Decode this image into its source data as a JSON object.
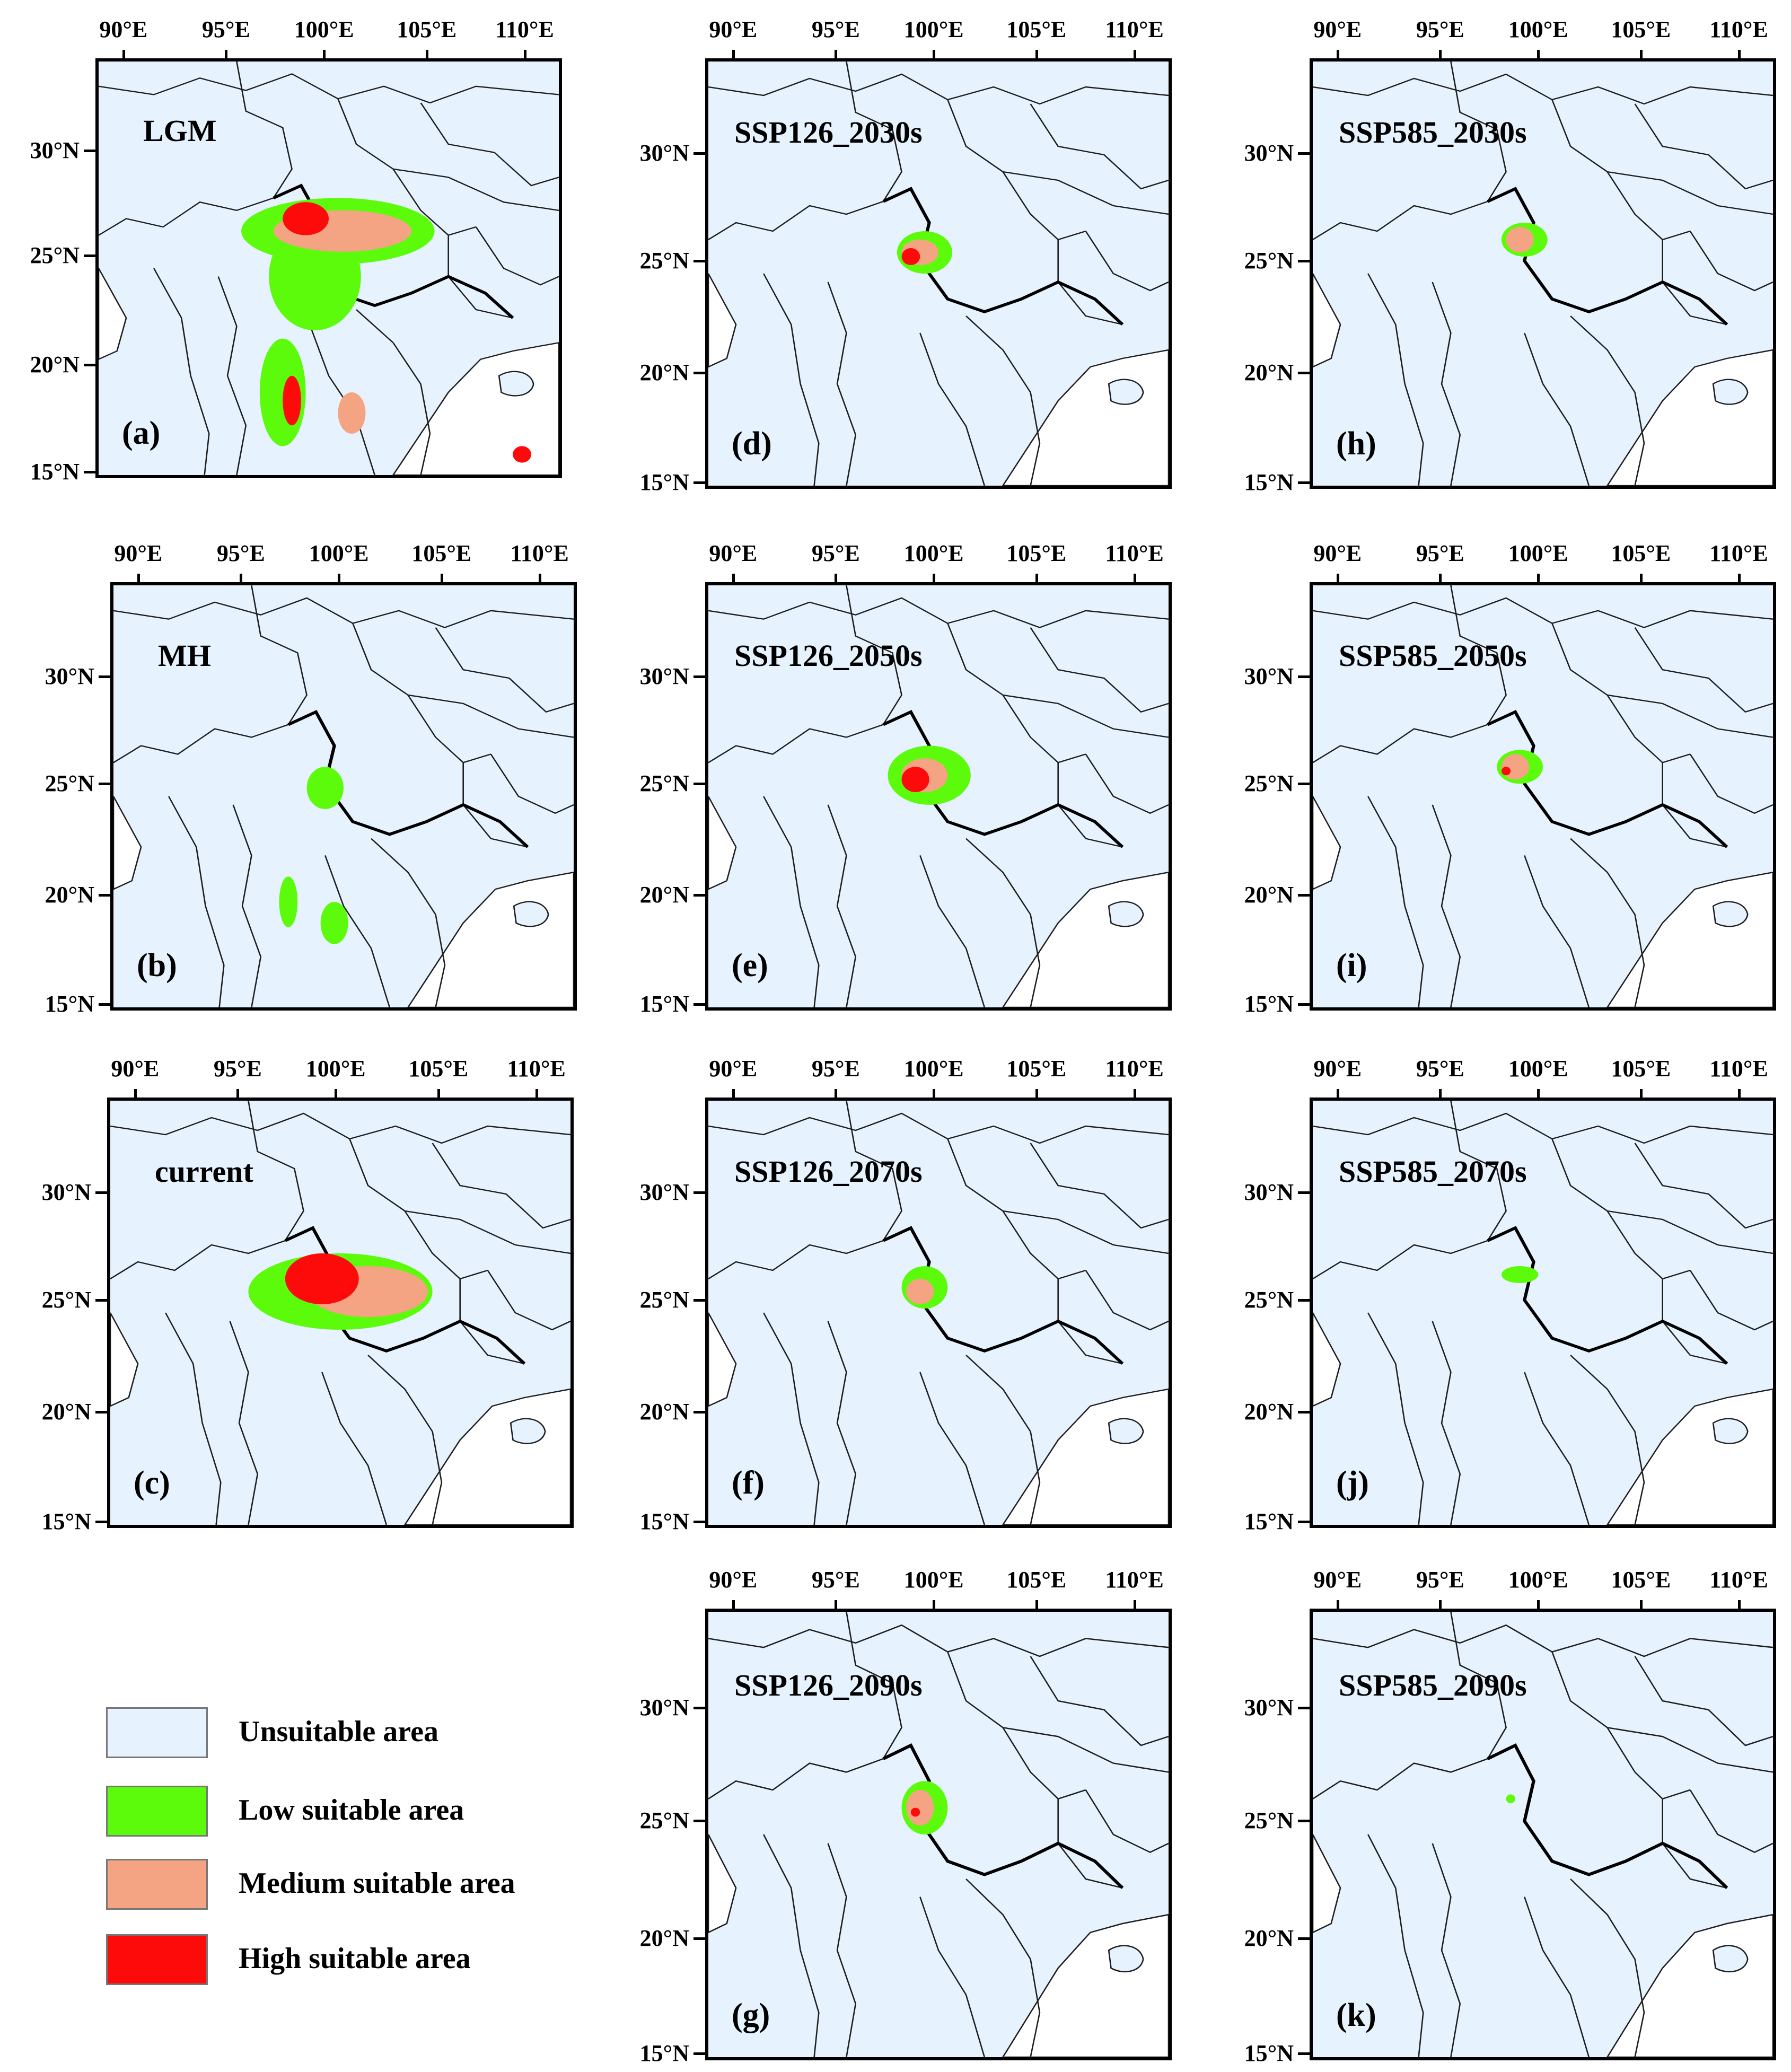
{
  "colors": {
    "unsuitable": "#e6f2fd",
    "low": "#5cfb0c",
    "medium": "#f4a482",
    "high": "#fd0a0a",
    "boundary": "#1e1e1e",
    "sea": "#ffffff"
  },
  "axes": {
    "lon_ticks": [
      "90°E",
      "95°E",
      "100°E",
      "105°E",
      "110°E"
    ],
    "lat_ticks": [
      "30°N",
      "25°N",
      "20°N",
      "15°N"
    ]
  },
  "panels": [
    {
      "letter": "(a)",
      "scenario": "LGM",
      "suitable_extent": "large"
    },
    {
      "letter": "(b)",
      "scenario": "MH",
      "suitable_extent": "small"
    },
    {
      "letter": "(c)",
      "scenario": "current",
      "suitable_extent": "large"
    },
    {
      "letter": "(d)",
      "scenario": "SSP126_2030s",
      "suitable_extent": "small"
    },
    {
      "letter": "(e)",
      "scenario": "SSP126_2050s",
      "suitable_extent": "medium"
    },
    {
      "letter": "(f)",
      "scenario": "SSP126_2070s",
      "suitable_extent": "small"
    },
    {
      "letter": "(g)",
      "scenario": "SSP126_2090s",
      "suitable_extent": "small"
    },
    {
      "letter": "(h)",
      "scenario": "SSP585_2030s",
      "suitable_extent": "small"
    },
    {
      "letter": "(i)",
      "scenario": "SSP585_2050s",
      "suitable_extent": "small"
    },
    {
      "letter": "(j)",
      "scenario": "SSP585_2070s",
      "suitable_extent": "very small"
    },
    {
      "letter": "(k)",
      "scenario": "SSP585_2090s",
      "suitable_extent": "minimal"
    }
  ],
  "legend": [
    {
      "label": "Unsuitable area",
      "color": "#e6f2fd"
    },
    {
      "label": "Low suitable area",
      "color": "#5cfb0c"
    },
    {
      "label": "Medium suitable area",
      "color": "#f4a482"
    },
    {
      "label": "High suitable area",
      "color": "#fd0a0a"
    }
  ]
}
